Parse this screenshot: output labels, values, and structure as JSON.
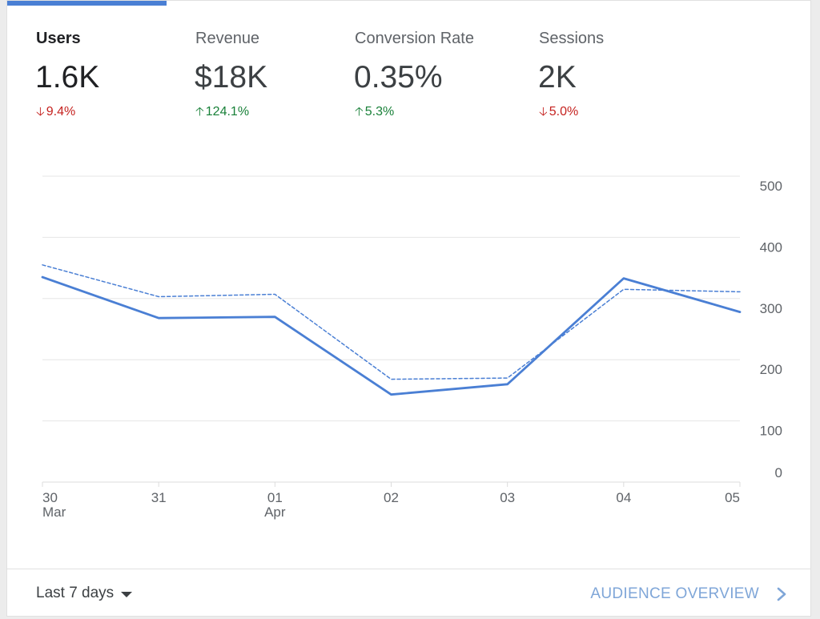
{
  "metrics": [
    {
      "label": "Users",
      "value": "1.6K",
      "delta": "9.4%",
      "direction": "down",
      "active": true
    },
    {
      "label": "Revenue",
      "value": "$18K",
      "delta": "124.1%",
      "direction": "up",
      "active": false
    },
    {
      "label": "Conversion Rate",
      "value": "0.35%",
      "delta": "5.3%",
      "direction": "up",
      "active": false
    },
    {
      "label": "Sessions",
      "value": "2K",
      "delta": "5.0%",
      "direction": "down",
      "active": false
    }
  ],
  "icons": {
    "down_arrow": "arrow-down-icon",
    "up_arrow": "arrow-up-icon",
    "dropdown": "caret-down-icon",
    "link": "chevron-right-icon"
  },
  "colors": {
    "accent": "#4a7fd4",
    "up": "#188038",
    "down": "#c5221f",
    "link": "#7fa6d8",
    "grid": "#e6e6e6"
  },
  "chart_data": {
    "type": "line",
    "categories": [
      "30 Mar",
      "31",
      "01 Apr",
      "02",
      "03",
      "04",
      "05"
    ],
    "x_tick_labels": [
      {
        "day": "30",
        "month": "Mar"
      },
      {
        "day": "31",
        "month": ""
      },
      {
        "day": "01",
        "month": "Apr"
      },
      {
        "day": "02",
        "month": ""
      },
      {
        "day": "03",
        "month": ""
      },
      {
        "day": "04",
        "month": ""
      },
      {
        "day": "05",
        "month": ""
      }
    ],
    "series": [
      {
        "style": "solid",
        "values": [
          335,
          268,
          270,
          143,
          160,
          333,
          278
        ]
      },
      {
        "style": "dashed",
        "values": [
          355,
          303,
          307,
          168,
          170,
          315,
          311
        ]
      }
    ],
    "y_ticks": [
      0,
      100,
      200,
      300,
      400,
      500
    ],
    "ylim": [
      0,
      500
    ],
    "y_axis_side": "right",
    "grid": true
  },
  "footer": {
    "range_label": "Last 7 days",
    "link_label": "AUDIENCE OVERVIEW"
  }
}
